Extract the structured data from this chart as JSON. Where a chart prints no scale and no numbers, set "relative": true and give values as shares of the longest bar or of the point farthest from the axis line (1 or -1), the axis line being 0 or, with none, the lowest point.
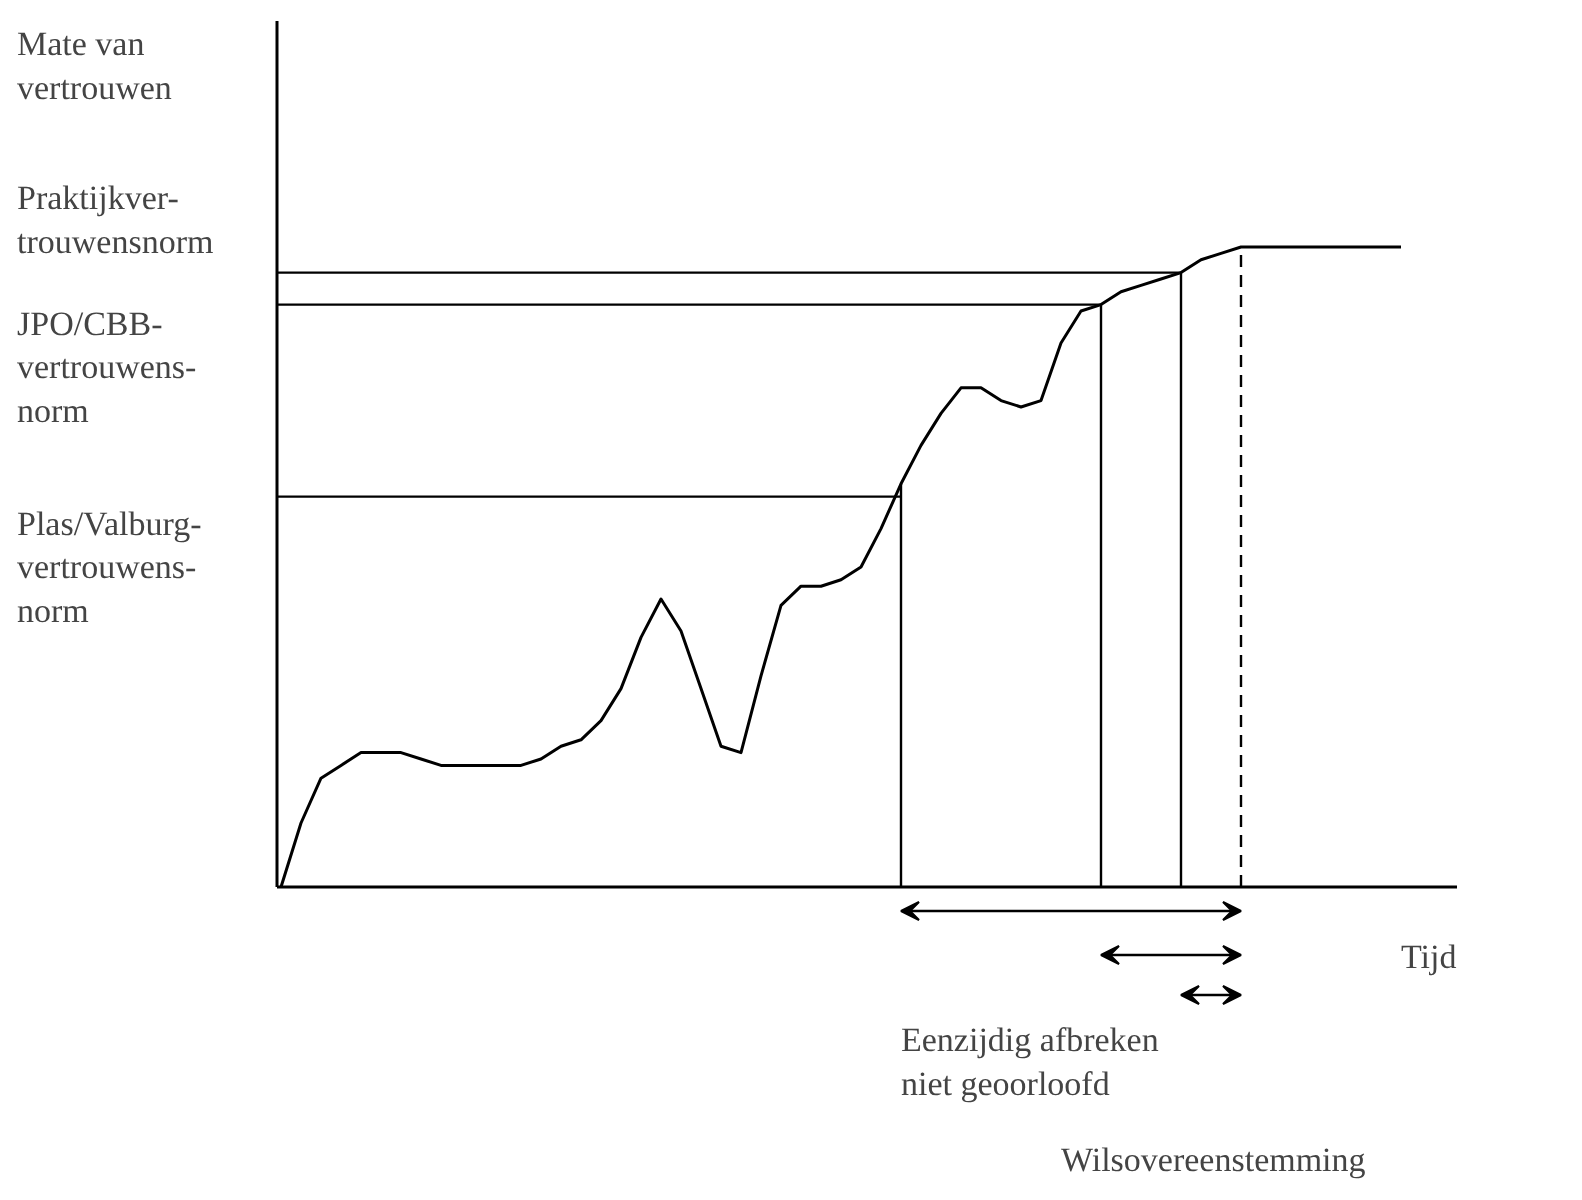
{
  "chart_data": {
    "type": "line",
    "relative": true,
    "xlabel": "Tijd",
    "marker": "none",
    "line_style": "solid",
    "categories": [
      null,
      null,
      null,
      null,
      null,
      null,
      null,
      null,
      null,
      null,
      null,
      null,
      null,
      null,
      null,
      null,
      null,
      null,
      null,
      null,
      null,
      null,
      null,
      null,
      null,
      null,
      null,
      null,
      null,
      null,
      null,
      null,
      null,
      null,
      null,
      null,
      null,
      null,
      null,
      null,
      null,
      null,
      null,
      null,
      null,
      null,
      null,
      null,
      null,
      null,
      null,
      null,
      null,
      null,
      null,
      null,
      null
    ],
    "series": [
      {
        "color": "#000000",
        "values": [
          0,
          0.1,
          0.17,
          0.19,
          0.21,
          0.21,
          0.21,
          0.2,
          0.19,
          0.19,
          0.19,
          0.19,
          0.19,
          0.2,
          0.22,
          0.23,
          0.26,
          0.31,
          0.39,
          0.45,
          0.4,
          0.31,
          0.22,
          0.21,
          0.33,
          0.44,
          0.47,
          0.47,
          0.48,
          0.5,
          0.56,
          0.63,
          0.69,
          0.74,
          0.78,
          0.78,
          0.76,
          0.75,
          0.76,
          0.85,
          0.9,
          0.91,
          0.93,
          0.94,
          0.95,
          0.96,
          0.98,
          0.99,
          1.0,
          1.0,
          1.0,
          1.0,
          1.0,
          1.0,
          1.0,
          1.0,
          1.0
        ]
      }
    ],
    "ref_lines": [
      {
        "axis": "y",
        "value": 0.61,
        "label": "Plas/Valburg-\nvertrouwens-\nnorm",
        "color": "#000000"
      },
      {
        "axis": "y",
        "value": 0.91,
        "label": "JPO/CBB-\nvertrouwens-\nnorm",
        "color": "#000000"
      },
      {
        "axis": "y",
        "value": 0.96,
        "label": "Praktijkver-\ntrouwensnorm",
        "color": "#000000"
      }
    ],
    "annotations": [
      "Mate van\nvertrouwen",
      "Eenzijdig afbreken\nniet geoorloofd",
      "Wilsovereenstemming"
    ]
  }
}
